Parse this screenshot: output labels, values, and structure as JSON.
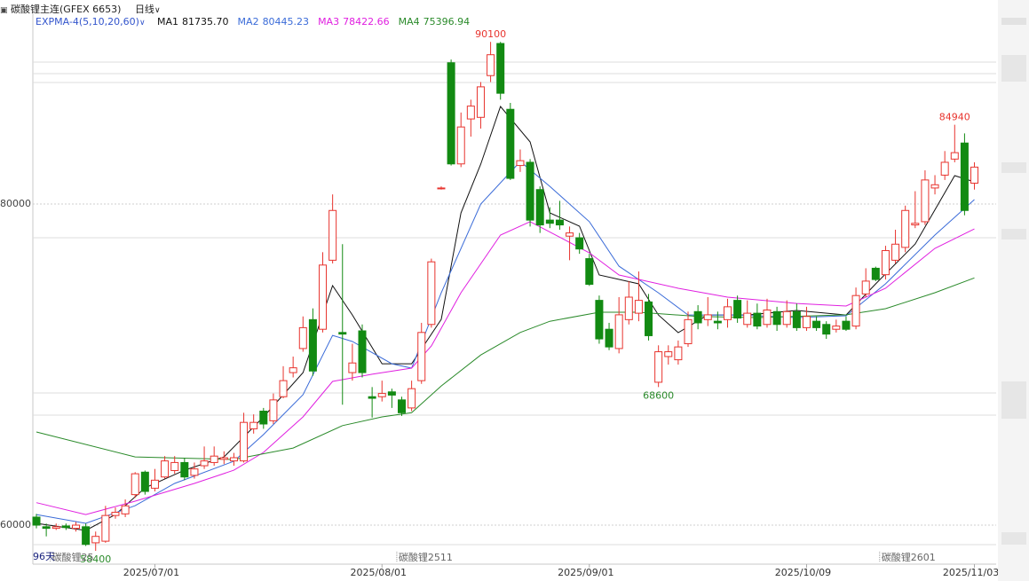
{
  "header": {
    "title": "碳酸锂主连(GFEX 6653)",
    "period": "日线"
  },
  "chart_data": {
    "type": "candlestick",
    "indicator": "EXPMA-4(5,10,20,60)",
    "categories": [
      null,
      null,
      null,
      null,
      null,
      null,
      null,
      null,
      null,
      null,
      null,
      null,
      "2025/07/01",
      null,
      null,
      null,
      null,
      null,
      null,
      null,
      null,
      null,
      null,
      null,
      null,
      null,
      null,
      null,
      null,
      null,
      null,
      null,
      null,
      null,
      null,
      "2025/08/01",
      null,
      null,
      null,
      null,
      null,
      null,
      null,
      null,
      null,
      null,
      null,
      null,
      null,
      null,
      null,
      null,
      null,
      null,
      null,
      null,
      "2025/09/01",
      null,
      null,
      null,
      null,
      null,
      null,
      null,
      null,
      null,
      null,
      null,
      null,
      null,
      null,
      null,
      null,
      null,
      null,
      null,
      null,
      null,
      "2025/10/09",
      null,
      null,
      null,
      null,
      null,
      null,
      null,
      null,
      null,
      null,
      null,
      null,
      null,
      null,
      null,
      null,
      "2025/11/03"
    ],
    "open": [
      60500,
      59900,
      59800,
      59950,
      59800,
      59900,
      58900,
      59000,
      60600,
      60700,
      61900,
      63300,
      62300,
      63000,
      63400,
      63900,
      63100,
      63700,
      63900,
      64100,
      64000,
      64000,
      66000,
      67100,
      66500,
      68000,
      69500,
      71000,
      72800,
      72200,
      76500,
      72000,
      69500,
      72100,
      68000,
      68000,
      68300,
      67800,
      67300,
      69000,
      72500,
      81000,
      88800,
      82500,
      85300,
      85400,
      88000,
      90000,
      85900,
      82400,
      82600,
      80900,
      79000,
      79000,
      78000,
      77900,
      76600,
      74000,
      72200,
      71000,
      72800,
      73200,
      73900,
      68900,
      70500,
      70300,
      71300,
      73300,
      72800,
      72700,
      72800,
      74000,
      72500,
      73200,
      72500,
      73300,
      72500,
      73300,
      72300,
      72700,
      72500,
      72200,
      72700,
      72400,
      74400,
      76000,
      75600,
      76500,
      77300,
      78700,
      78900,
      81000,
      81800,
      82800,
      83800,
      81300
    ],
    "high": [
      60700,
      60100,
      60100,
      60100,
      60200,
      60100,
      59600,
      61200,
      61100,
      61600,
      63300,
      63400,
      63500,
      64300,
      64300,
      64200,
      63900,
      64900,
      64900,
      64600,
      64500,
      67000,
      66900,
      67300,
      68200,
      69900,
      70500,
      73000,
      73500,
      77000,
      80600,
      77500,
      71300,
      72500,
      68600,
      69000,
      68500,
      68000,
      69000,
      72600,
      76600,
      81100,
      89000,
      85700,
      86500,
      87600,
      90100,
      90100,
      86300,
      83400,
      82800,
      81100,
      79800,
      80200,
      78600,
      78200,
      76900,
      74300,
      72600,
      74200,
      75200,
      75800,
      74400,
      71200,
      71200,
      71500,
      73300,
      73700,
      74200,
      73300,
      74100,
      74300,
      74000,
      73800,
      74100,
      73600,
      74000,
      73800,
      73600,
      73000,
      72700,
      72800,
      73000,
      74800,
      76000,
      76100,
      77400,
      78400,
      79900,
      80800,
      82100,
      81800,
      83300,
      84940,
      84400,
      82600
    ],
    "low": [
      59800,
      59300,
      59700,
      59700,
      59600,
      58700,
      58400,
      58900,
      60400,
      60500,
      61700,
      61900,
      62100,
      62900,
      63200,
      62800,
      62900,
      63500,
      63700,
      63800,
      63700,
      63900,
      65700,
      66000,
      66300,
      67900,
      69200,
      70800,
      69300,
      72000,
      76300,
      67500,
      69000,
      69200,
      66700,
      67700,
      67300,
      66800,
      67100,
      68800,
      72300,
      80900,
      82400,
      82300,
      84200,
      84700,
      87600,
      86500,
      81500,
      82000,
      78600,
      78200,
      78500,
      78400,
      76500,
      76900,
      74900,
      71300,
      70900,
      70700,
      72500,
      72700,
      71500,
      68600,
      70000,
      70000,
      71100,
      72200,
      72400,
      72200,
      72300,
      72600,
      72300,
      72200,
      72300,
      72100,
      72300,
      72100,
      72100,
      72100,
      71600,
      72000,
      72100,
      72200,
      74200,
      75200,
      75300,
      76300,
      77000,
      78500,
      78700,
      80600,
      81500,
      82600,
      79300,
      80900
    ],
    "close": [
      60000,
      59800,
      59900,
      59850,
      60000,
      58800,
      59300,
      60600,
      60800,
      61200,
      63200,
      62100,
      62800,
      64000,
      63900,
      63000,
      63500,
      64000,
      64300,
      64200,
      64200,
      66400,
      66400,
      66300,
      67800,
      69000,
      69800,
      72300,
      69600,
      76200,
      79600,
      71900,
      70100,
      69500,
      67900,
      68200,
      68100,
      67000,
      68500,
      72000,
      76400,
      81000,
      82500,
      84800,
      86100,
      87300,
      89300,
      86900,
      81600,
      82700,
      79000,
      78700,
      78800,
      78700,
      78200,
      77200,
      75000,
      71600,
      71100,
      73100,
      74200,
      74000,
      71800,
      70800,
      70800,
      71100,
      72800,
      72600,
      73100,
      72600,
      73600,
      72900,
      73200,
      72400,
      73400,
      72500,
      73300,
      72300,
      73000,
      72300,
      71900,
      72400,
      72200,
      74300,
      75200,
      75300,
      77100,
      77500,
      79600,
      78800,
      81500,
      81200,
      82600,
      83200,
      79600,
      82300
    ],
    "up_color": "#e8342e",
    "down_color": "#128a12",
    "series": [
      {
        "name": "MA1",
        "latest": "81735.70",
        "color": "#111111",
        "x": [
          0,
          5,
          8,
          11,
          15,
          19,
          23,
          27,
          30,
          32,
          35,
          38,
          41,
          43,
          45,
          47,
          50,
          52,
          55,
          57,
          61,
          63,
          65,
          68,
          72,
          77,
          82,
          85,
          89,
          93,
          95
        ],
        "values": [
          60110,
          59670,
          60660,
          62320,
          63420,
          64250,
          66740,
          69500,
          74920,
          73090,
          70050,
          70050,
          72820,
          79450,
          82490,
          86080,
          83870,
          79450,
          78620,
          75580,
          75030,
          73090,
          71990,
          73090,
          73090,
          73370,
          73090,
          75030,
          77510,
          81770,
          81380
        ]
      },
      {
        "name": "MA2",
        "latest": "80445.23",
        "color": "#3a6bd8",
        "x": [
          0,
          5,
          10,
          14,
          20,
          23,
          27,
          30,
          32,
          36,
          38,
          41,
          45,
          49,
          52,
          56,
          59,
          63,
          66,
          71,
          77,
          82,
          86,
          91,
          95
        ],
        "values": [
          60660,
          60110,
          61210,
          62600,
          63980,
          65640,
          68120,
          71820,
          71440,
          70050,
          69780,
          74470,
          80000,
          82650,
          81100,
          78900,
          76130,
          74470,
          73090,
          73090,
          72930,
          73040,
          75030,
          78070,
          80280
        ]
      },
      {
        "name": "MA3",
        "latest": "78422.66",
        "color": "#e020e0",
        "x": [
          0,
          5,
          10,
          16,
          20,
          23,
          27,
          30,
          34,
          38,
          40,
          43,
          47,
          50,
          56,
          59,
          65,
          70,
          77,
          82,
          86,
          91,
          95
        ],
        "values": [
          61400,
          60660,
          61490,
          62600,
          63420,
          64530,
          66740,
          68950,
          69400,
          69780,
          71160,
          74475,
          78070,
          78900,
          76960,
          75580,
          74750,
          74200,
          73810,
          73650,
          74750,
          77240,
          78450
        ]
      },
      {
        "name": "MA4",
        "latest": "75396.94",
        "color": "#2a8a2a",
        "x": [
          0,
          10,
          20,
          26,
          31,
          35,
          38,
          41,
          45,
          49,
          52,
          57,
          61,
          67,
          73,
          82,
          86,
          91,
          95
        ],
        "values": [
          65800,
          64250,
          64090,
          64800,
          66200,
          66740,
          67000,
          68670,
          70600,
          72000,
          72700,
          73260,
          73260,
          73000,
          72930,
          73100,
          73480,
          74475,
          75400
        ]
      }
    ],
    "annotations": [
      {
        "x": 46,
        "value": 90100,
        "position": "above",
        "color": "#e8342e"
      },
      {
        "x": 93,
        "value": 84940,
        "position": "above",
        "color": "#e8342e"
      },
      {
        "x": 63,
        "value": 68600,
        "position": "below",
        "color": "#2a8a2a"
      },
      {
        "x": 6,
        "value": 58400,
        "position": "below",
        "color": "#2a8a2a"
      }
    ],
    "contract_marks": [
      {
        "x": 1.4,
        "label": "碳酸锂25"
      },
      {
        "x": 36.5,
        "label": "碳酸锂2511"
      },
      {
        "x": 85.4,
        "label": "碳酸锂2601"
      }
    ],
    "days_label": "96天",
    "xlim": [
      -0.36,
      97.2
    ],
    "ylim": [
      57570,
      91880
    ],
    "yticks": [
      60000,
      80000
    ],
    "grid": true
  }
}
